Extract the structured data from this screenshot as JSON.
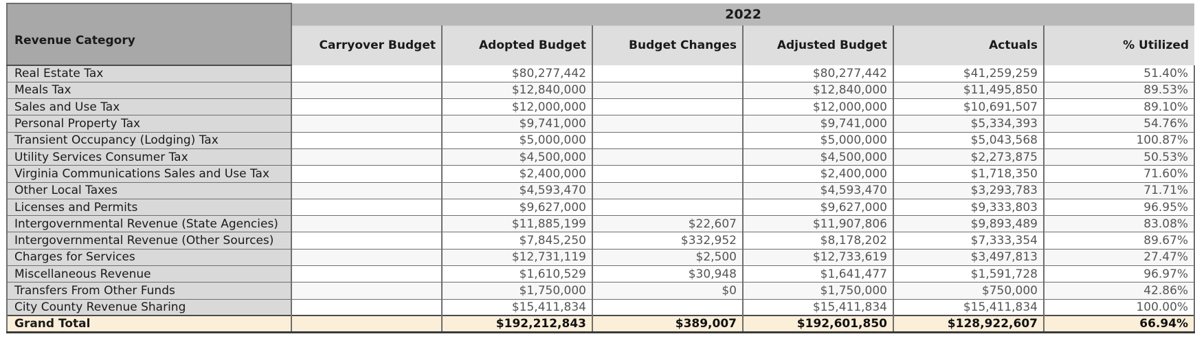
{
  "year_header": "2022",
  "columns": [
    "Revenue Category",
    "Carryover Budget",
    "Adopted Budget",
    "Budget Changes",
    "Adjusted Budget",
    "Actuals",
    "% Utilized"
  ],
  "rows": [
    {
      "category": "Real Estate Tax",
      "carryover": "",
      "adopted": "$80,277,442",
      "changes": "",
      "adjusted": "$80,277,442",
      "actuals": "$41,259,259",
      "utilized": "51.40%"
    },
    {
      "category": "Meals Tax",
      "carryover": "",
      "adopted": "$12,840,000",
      "changes": "",
      "adjusted": "$12,840,000",
      "actuals": "$11,495,850",
      "utilized": "89.53%"
    },
    {
      "category": "Sales and Use Tax",
      "carryover": "",
      "adopted": "$12,000,000",
      "changes": "",
      "adjusted": "$12,000,000",
      "actuals": "$10,691,507",
      "utilized": "89.10%"
    },
    {
      "category": "Personal Property Tax",
      "carryover": "",
      "adopted": "$9,741,000",
      "changes": "",
      "adjusted": "$9,741,000",
      "actuals": "$5,334,393",
      "utilized": "54.76%"
    },
    {
      "category": "Transient Occupancy (Lodging) Tax",
      "carryover": "",
      "adopted": "$5,000,000",
      "changes": "",
      "adjusted": "$5,000,000",
      "actuals": "$5,043,568",
      "utilized": "100.87%"
    },
    {
      "category": "Utility Services Consumer Tax",
      "carryover": "",
      "adopted": "$4,500,000",
      "changes": "",
      "adjusted": "$4,500,000",
      "actuals": "$2,273,875",
      "utilized": "50.53%"
    },
    {
      "category": "Virginia Communications Sales and Use Tax",
      "carryover": "",
      "adopted": "$2,400,000",
      "changes": "",
      "adjusted": "$2,400,000",
      "actuals": "$1,718,350",
      "utilized": "71.60%"
    },
    {
      "category": "Other Local Taxes",
      "carryover": "",
      "adopted": "$4,593,470",
      "changes": "",
      "adjusted": "$4,593,470",
      "actuals": "$3,293,783",
      "utilized": "71.71%"
    },
    {
      "category": "Licenses and Permits",
      "carryover": "",
      "adopted": "$9,627,000",
      "changes": "",
      "adjusted": "$9,627,000",
      "actuals": "$9,333,803",
      "utilized": "96.95%"
    },
    {
      "category": "Intergovernmental Revenue (State Agencies)",
      "carryover": "",
      "adopted": "$11,885,199",
      "changes": "$22,607",
      "adjusted": "$11,907,806",
      "actuals": "$9,893,489",
      "utilized": "83.08%"
    },
    {
      "category": "Intergovernmental Revenue (Other Sources)",
      "carryover": "",
      "adopted": "$7,845,250",
      "changes": "$332,952",
      "adjusted": "$8,178,202",
      "actuals": "$7,333,354",
      "utilized": "89.67%"
    },
    {
      "category": "Charges for Services",
      "carryover": "",
      "adopted": "$12,731,119",
      "changes": "$2,500",
      "adjusted": "$12,733,619",
      "actuals": "$3,497,813",
      "utilized": "27.47%"
    },
    {
      "category": "Miscellaneous Revenue",
      "carryover": "",
      "adopted": "$1,610,529",
      "changes": "$30,948",
      "adjusted": "$1,641,477",
      "actuals": "$1,591,728",
      "utilized": "96.97%"
    },
    {
      "category": "Transfers From Other Funds",
      "carryover": "",
      "adopted": "$1,750,000",
      "changes": "$0",
      "adjusted": "$1,750,000",
      "actuals": "$750,000",
      "utilized": "42.86%"
    },
    {
      "category": "City County Revenue Sharing",
      "carryover": "",
      "adopted": "$15,411,834",
      "changes": "",
      "adjusted": "$15,411,834",
      "actuals": "$15,411,834",
      "utilized": "100.00%"
    }
  ],
  "total": {
    "category": "Grand Total",
    "carryover": "",
    "adopted": "$192,212,843",
    "changes": "$389,007",
    "adjusted": "$192,601,850",
    "actuals": "$128,922,607",
    "utilized": "66.94%"
  }
}
